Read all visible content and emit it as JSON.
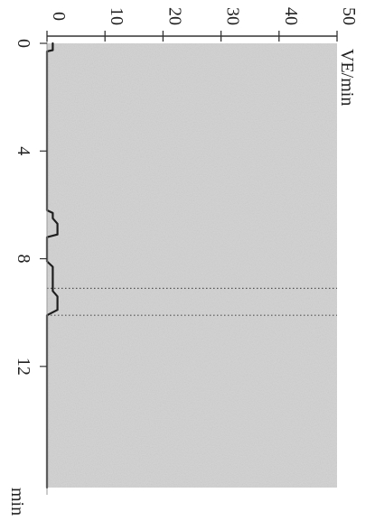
{
  "chart_data": {
    "type": "line",
    "orientation": "rotated-90-clockwise",
    "title": "",
    "xlabel": "min",
    "ylabel": "VE/min",
    "xlim": [
      0,
      16.5
    ],
    "ylim": [
      0,
      50
    ],
    "x_ticks": [
      0,
      4,
      8,
      12
    ],
    "y_ticks": [
      0,
      10,
      20,
      30,
      40,
      50
    ],
    "x_tick_labels": [
      "0",
      "4",
      "8",
      "12"
    ],
    "y_tick_labels": [
      "0",
      "10",
      "20",
      "30",
      "40",
      "50"
    ],
    "vertical_markers": [
      9.1,
      10.1
    ],
    "grid": false,
    "series": [
      {
        "x": [
          0,
          0.25,
          0.3,
          1.3,
          1.35,
          6.2,
          6.3,
          6.5,
          6.7,
          7.1,
          7.2,
          8.1,
          8.3,
          9.2,
          9.4,
          9.9,
          10.1,
          16.5
        ],
        "y": [
          1.0,
          1.0,
          0.0,
          0.0,
          0.0,
          0.0,
          1.0,
          1.0,
          1.8,
          1.8,
          0.0,
          0.0,
          1.0,
          1.0,
          1.8,
          1.8,
          0.0,
          0.0
        ]
      }
    ],
    "colors": {
      "line": "#1e1e1e",
      "plot_background": "#d4d4d4",
      "axis": "#333333",
      "marker": "#555555"
    }
  }
}
